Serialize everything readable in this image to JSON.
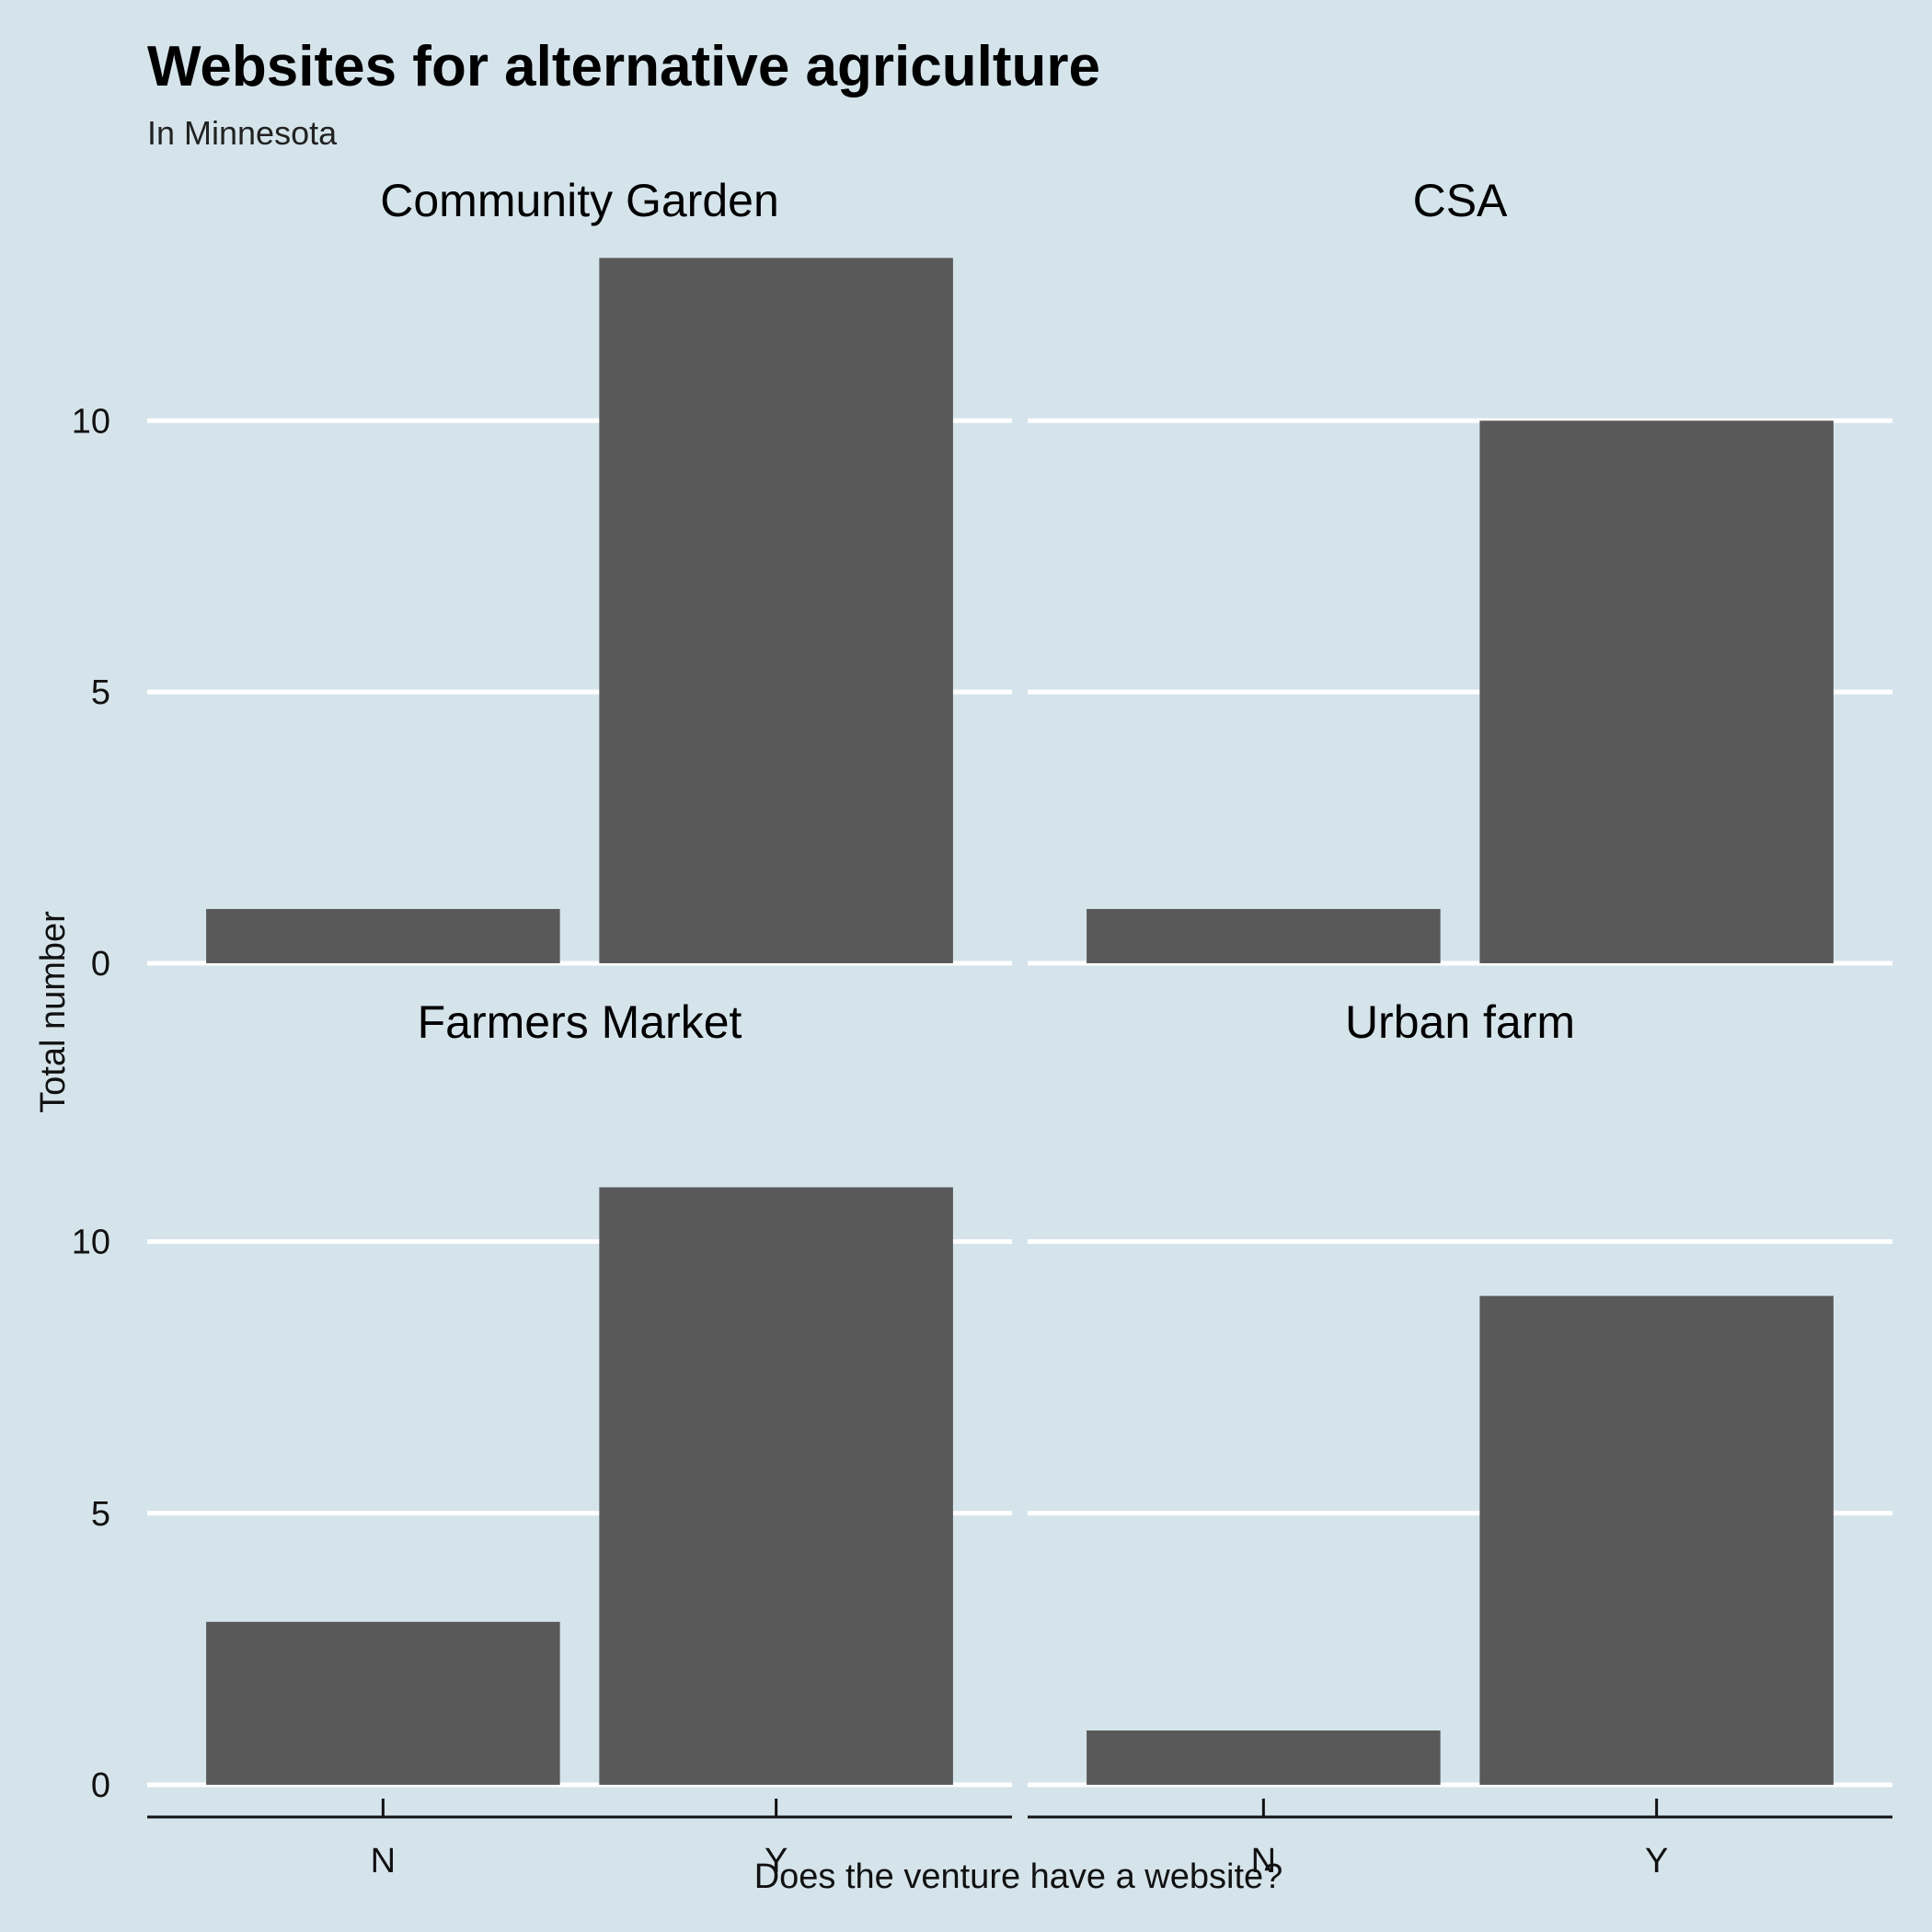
{
  "chart_data": {
    "type": "bar",
    "title": "Websites for alternative agriculture",
    "subtitle": "In Minnesota",
    "xlabel": "Does the venture have a website?",
    "ylabel": "Total number",
    "categories": [
      "N",
      "Y"
    ],
    "ylim": [
      0,
      13.6
    ],
    "yticks": [
      0,
      5,
      10
    ],
    "grid": "horizontal major lines",
    "bar_color": "#595959",
    "background_color": "#d5e4eb",
    "gridline_color": "#ffffff",
    "facets": [
      {
        "name": "Community Garden",
        "values": [
          1,
          13
        ]
      },
      {
        "name": "CSA",
        "values": [
          1,
          10
        ]
      },
      {
        "name": "Farmers Market",
        "values": [
          3,
          11
        ]
      },
      {
        "name": "Urban farm",
        "values": [
          1,
          9
        ]
      }
    ]
  }
}
